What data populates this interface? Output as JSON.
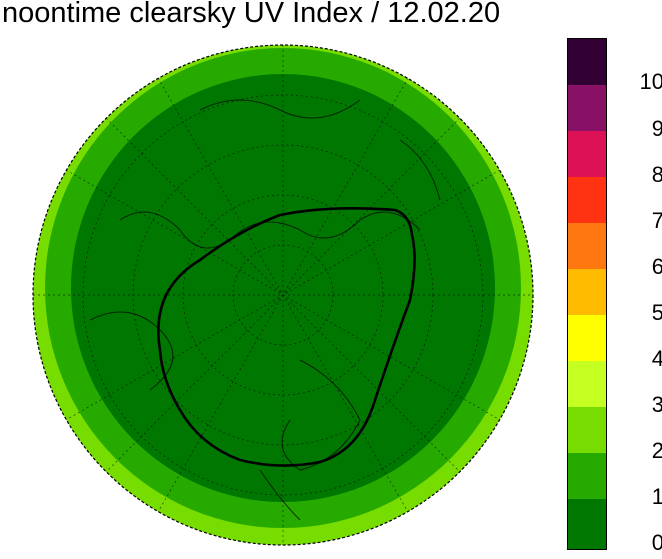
{
  "title": "noontime clearsky UV Index / 12.02.20",
  "colors": {
    "uv0": "#007700",
    "uv1": "#27aa00",
    "uv2": "#77dd00",
    "uv3": "#c6ff22",
    "uv4": "#ffff00",
    "uv5": "#ffbb00",
    "uv6": "#ff7711",
    "uv7": "#ff3311",
    "uv8": "#dd1155",
    "uv9": "#881166",
    "uv10": "#330033"
  },
  "legend": {
    "ticks": [
      "10",
      "9",
      "8",
      "7",
      "6",
      "5",
      "4",
      "3",
      "2",
      "1",
      "0"
    ]
  },
  "map": {
    "projection": "north polar stereographic",
    "overlay": "ozone hole contour (black line)"
  }
}
